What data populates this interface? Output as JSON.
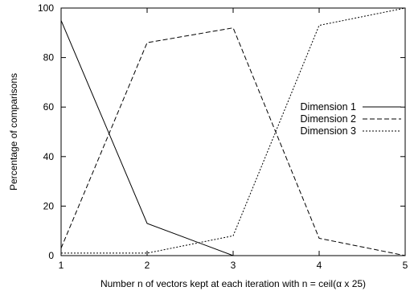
{
  "chart_data": {
    "type": "line",
    "xlabel": "Number n of vectors kept at each iteration with n = ceil(α x 25)",
    "ylabel": "Percentage of comparisons",
    "x": [
      1,
      2,
      3,
      4,
      5
    ],
    "xlim": [
      1,
      5
    ],
    "ylim": [
      0,
      100
    ],
    "xticks": [
      "1",
      "2",
      "3",
      "4",
      "5"
    ],
    "yticks": [
      "0",
      "20",
      "40",
      "60",
      "80",
      "100"
    ],
    "grid": false,
    "legend_position": "right",
    "series": [
      {
        "name": "Dimension 1",
        "values": [
          95,
          13,
          0,
          0,
          0
        ],
        "style": "solid"
      },
      {
        "name": "Dimension 2",
        "values": [
          3,
          86,
          92,
          7,
          0
        ],
        "style": "dashed"
      },
      {
        "name": "Dimension 3",
        "values": [
          1,
          1,
          8,
          93,
          100
        ],
        "style": "dotted"
      }
    ]
  }
}
